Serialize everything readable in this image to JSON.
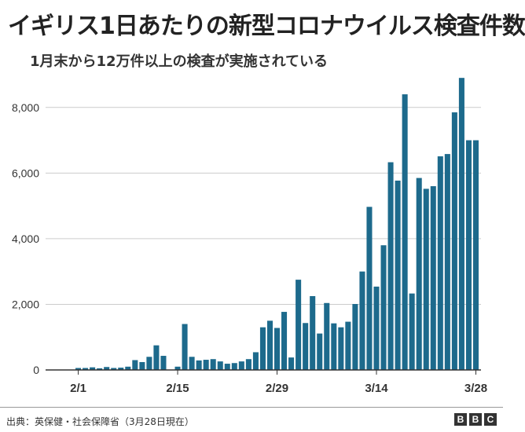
{
  "title": "イギリス1日あたりの新型コロナウイルス検査件数",
  "subtitle": "1月末から12万件以上の検査が実施されている",
  "source": "出典：英保健・社会保障省（3月28日現在）",
  "logo": [
    "B",
    "B",
    "C"
  ],
  "colors": {
    "bar": "#1d6a8c",
    "grid": "#cccccc",
    "axis": "#333333"
  },
  "chart_data": {
    "type": "bar",
    "title": "イギリス1日あたりの新型コロナウイルス検査件数",
    "xlabel": "",
    "ylabel": "",
    "ylim": [
      0,
      9000
    ],
    "yticks": [
      0,
      2000,
      4000,
      6000,
      8000
    ],
    "ytick_labels": [
      "0",
      "2,000",
      "4,000",
      "6,000",
      "8,000"
    ],
    "xtick_labels": [
      {
        "label": "2/1",
        "index": 1
      },
      {
        "label": "2/15",
        "index": 15
      },
      {
        "label": "2/29",
        "index": 29
      },
      {
        "label": "3/14",
        "index": 43
      },
      {
        "label": "3/28",
        "index": 57
      }
    ],
    "categories": [
      "1/31",
      "2/1",
      "2/2",
      "2/3",
      "2/4",
      "2/5",
      "2/6",
      "2/7",
      "2/8",
      "2/9",
      "2/10",
      "2/11",
      "2/12",
      "2/13",
      "2/14",
      "2/15",
      "2/16",
      "2/17",
      "2/18",
      "2/19",
      "2/20",
      "2/21",
      "2/22",
      "2/23",
      "2/24",
      "2/25",
      "2/26",
      "2/27",
      "2/28",
      "2/29",
      "3/1",
      "3/2",
      "3/3",
      "3/4",
      "3/5",
      "3/6",
      "3/7",
      "3/8",
      "3/9",
      "3/10",
      "3/11",
      "3/12",
      "3/13",
      "3/14",
      "3/15",
      "3/16",
      "3/17",
      "3/18",
      "3/19",
      "3/20",
      "3/21",
      "3/22",
      "3/23",
      "3/24",
      "3/25",
      "3/26",
      "3/27",
      "3/28"
    ],
    "values": [
      0,
      60,
      60,
      80,
      50,
      90,
      60,
      70,
      100,
      300,
      240,
      400,
      750,
      430,
      0,
      100,
      1400,
      400,
      290,
      310,
      330,
      260,
      190,
      210,
      260,
      330,
      540,
      1300,
      1500,
      1280,
      1770,
      380,
      2750,
      1430,
      2250,
      1110,
      2040,
      1420,
      1300,
      1470,
      2010,
      3000,
      4970,
      2540,
      3800,
      6330,
      5770,
      8400,
      2330,
      5850,
      5520,
      5600,
      6510,
      6580,
      7850,
      8900,
      7000,
      7000
    ]
  }
}
